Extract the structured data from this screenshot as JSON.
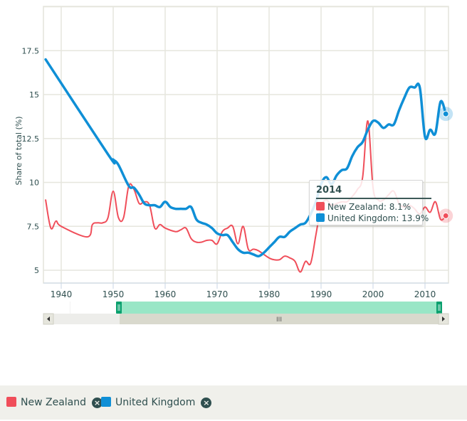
{
  "chart_data": {
    "type": "line",
    "title": "",
    "xlabel": "",
    "ylabel": "Share of total (%)",
    "xlim": [
      1937,
      2014
    ],
    "ylim": [
      4.3,
      20
    ],
    "grid": true,
    "yticks": [
      5,
      7.5,
      10,
      12.5,
      15,
      17.5
    ],
    "ytick_labels": [
      "5",
      "7.5",
      "10",
      "12.5",
      "15",
      "17.5"
    ],
    "xticks": [
      1940,
      1950,
      1960,
      1970,
      1980,
      1990,
      2000,
      2010
    ],
    "xtick_labels": [
      "1940",
      "1950",
      "1960",
      "1970",
      "1980",
      "1990",
      "2000",
      "2010"
    ],
    "legend_position": "bottom-left",
    "series": [
      {
        "name": "New Zealand",
        "color": "#f04e5a",
        "x": [
          1937,
          1938,
          1939,
          1940,
          1945,
          1946,
          1947,
          1948,
          1949,
          1950,
          1951,
          1952,
          1953,
          1954,
          1955,
          1956,
          1957,
          1958,
          1959,
          1960,
          1962,
          1963,
          1964,
          1965,
          1966,
          1967,
          1968,
          1969,
          1970,
          1971,
          1972,
          1973,
          1974,
          1975,
          1976,
          1977,
          1978,
          1980,
          1981,
          1982,
          1983,
          1984,
          1985,
          1986,
          1987,
          1988,
          1989,
          1990,
          1991,
          1992,
          1993,
          1994,
          1995,
          1996,
          1997,
          1998,
          1999,
          2000,
          2001,
          2002,
          2003,
          2004,
          2005,
          2006,
          2007,
          2008,
          2009,
          2010,
          2011,
          2012,
          2013,
          2014
        ],
        "y": [
          9.0,
          7.4,
          7.8,
          7.5,
          6.9,
          7.6,
          7.7,
          7.7,
          8.0,
          9.5,
          8.0,
          8.0,
          9.8,
          9.6,
          8.8,
          8.9,
          8.7,
          7.4,
          7.6,
          7.4,
          7.2,
          7.3,
          7.4,
          6.8,
          6.6,
          6.6,
          6.7,
          6.7,
          6.5,
          7.2,
          7.4,
          7.5,
          6.5,
          7.5,
          6.2,
          6.2,
          6.1,
          5.7,
          5.6,
          5.6,
          5.8,
          5.7,
          5.5,
          4.9,
          5.5,
          5.4,
          7.0,
          8.6,
          9.0,
          8.7,
          8.8,
          8.9,
          8.9,
          9.2,
          9.6,
          10.3,
          13.5,
          9.7,
          9.0,
          9.0,
          9.3,
          9.5,
          8.8,
          8.6,
          8.7,
          8.5,
          8.2,
          8.6,
          8.3,
          8.9,
          7.9,
          8.1
        ]
      },
      {
        "name": "United Kingdom",
        "color": "#0f8fd6",
        "x": [
          1937,
          1949,
          1950,
          1951,
          1953,
          1954,
          1955,
          1956,
          1957,
          1958,
          1959,
          1960,
          1961,
          1962,
          1963,
          1964,
          1965,
          1966,
          1967,
          1968,
          1969,
          1970,
          1971,
          1972,
          1973,
          1974,
          1975,
          1976,
          1977,
          1978,
          1979,
          1980,
          1981,
          1982,
          1983,
          1984,
          1985,
          1986,
          1987,
          1988,
          1989,
          1990,
          1991,
          1992,
          1993,
          1994,
          1995,
          1996,
          1997,
          1998,
          1999,
          2000,
          2001,
          2002,
          2003,
          2004,
          2005,
          2006,
          2007,
          2008,
          2009,
          2010,
          2011,
          2012,
          2013,
          2014
        ],
        "y": [
          17.0,
          11.6,
          11.3,
          11.0,
          9.8,
          9.7,
          9.3,
          8.8,
          8.7,
          8.7,
          8.6,
          8.9,
          8.6,
          8.5,
          8.5,
          8.5,
          8.6,
          7.9,
          7.7,
          7.6,
          7.4,
          7.1,
          7.0,
          7.0,
          6.6,
          6.2,
          6.0,
          6.0,
          5.9,
          5.8,
          6.0,
          6.3,
          6.6,
          6.9,
          6.9,
          7.2,
          7.4,
          7.6,
          7.7,
          8.2,
          8.9,
          9.9,
          10.3,
          9.9,
          10.4,
          10.7,
          10.8,
          11.5,
          12.0,
          12.3,
          13.0,
          13.5,
          13.4,
          13.1,
          13.3,
          13.3,
          14.1,
          14.8,
          15.4,
          15.4,
          15.4,
          12.6,
          13.0,
          12.8,
          14.6,
          13.9
        ]
      }
    ],
    "navigator": {
      "range_start_year": 1951,
      "range_end_year": 2014,
      "handle_color": "#0aa06e",
      "mask_color": "#99e6c6"
    },
    "hover": {
      "year": 2014
    }
  },
  "tooltip": {
    "title": "2014",
    "rows": [
      {
        "label": "New Zealand: 8.1%",
        "color": "#f04e5a"
      },
      {
        "label": "United Kingdom: 13.9%",
        "color": "#0f8fd6"
      }
    ]
  },
  "legend": {
    "items": [
      {
        "label": "New Zealand",
        "color": "#f04e5a",
        "remove_icon": "close-circle-icon"
      },
      {
        "label": "United Kingdom",
        "color": "#0f8fd6",
        "remove_icon": "close-circle-icon"
      }
    ]
  },
  "scrollbar": {
    "left_arrow": "◂",
    "right_arrow": "▸",
    "grip": "III",
    "handle_grip": "||"
  }
}
